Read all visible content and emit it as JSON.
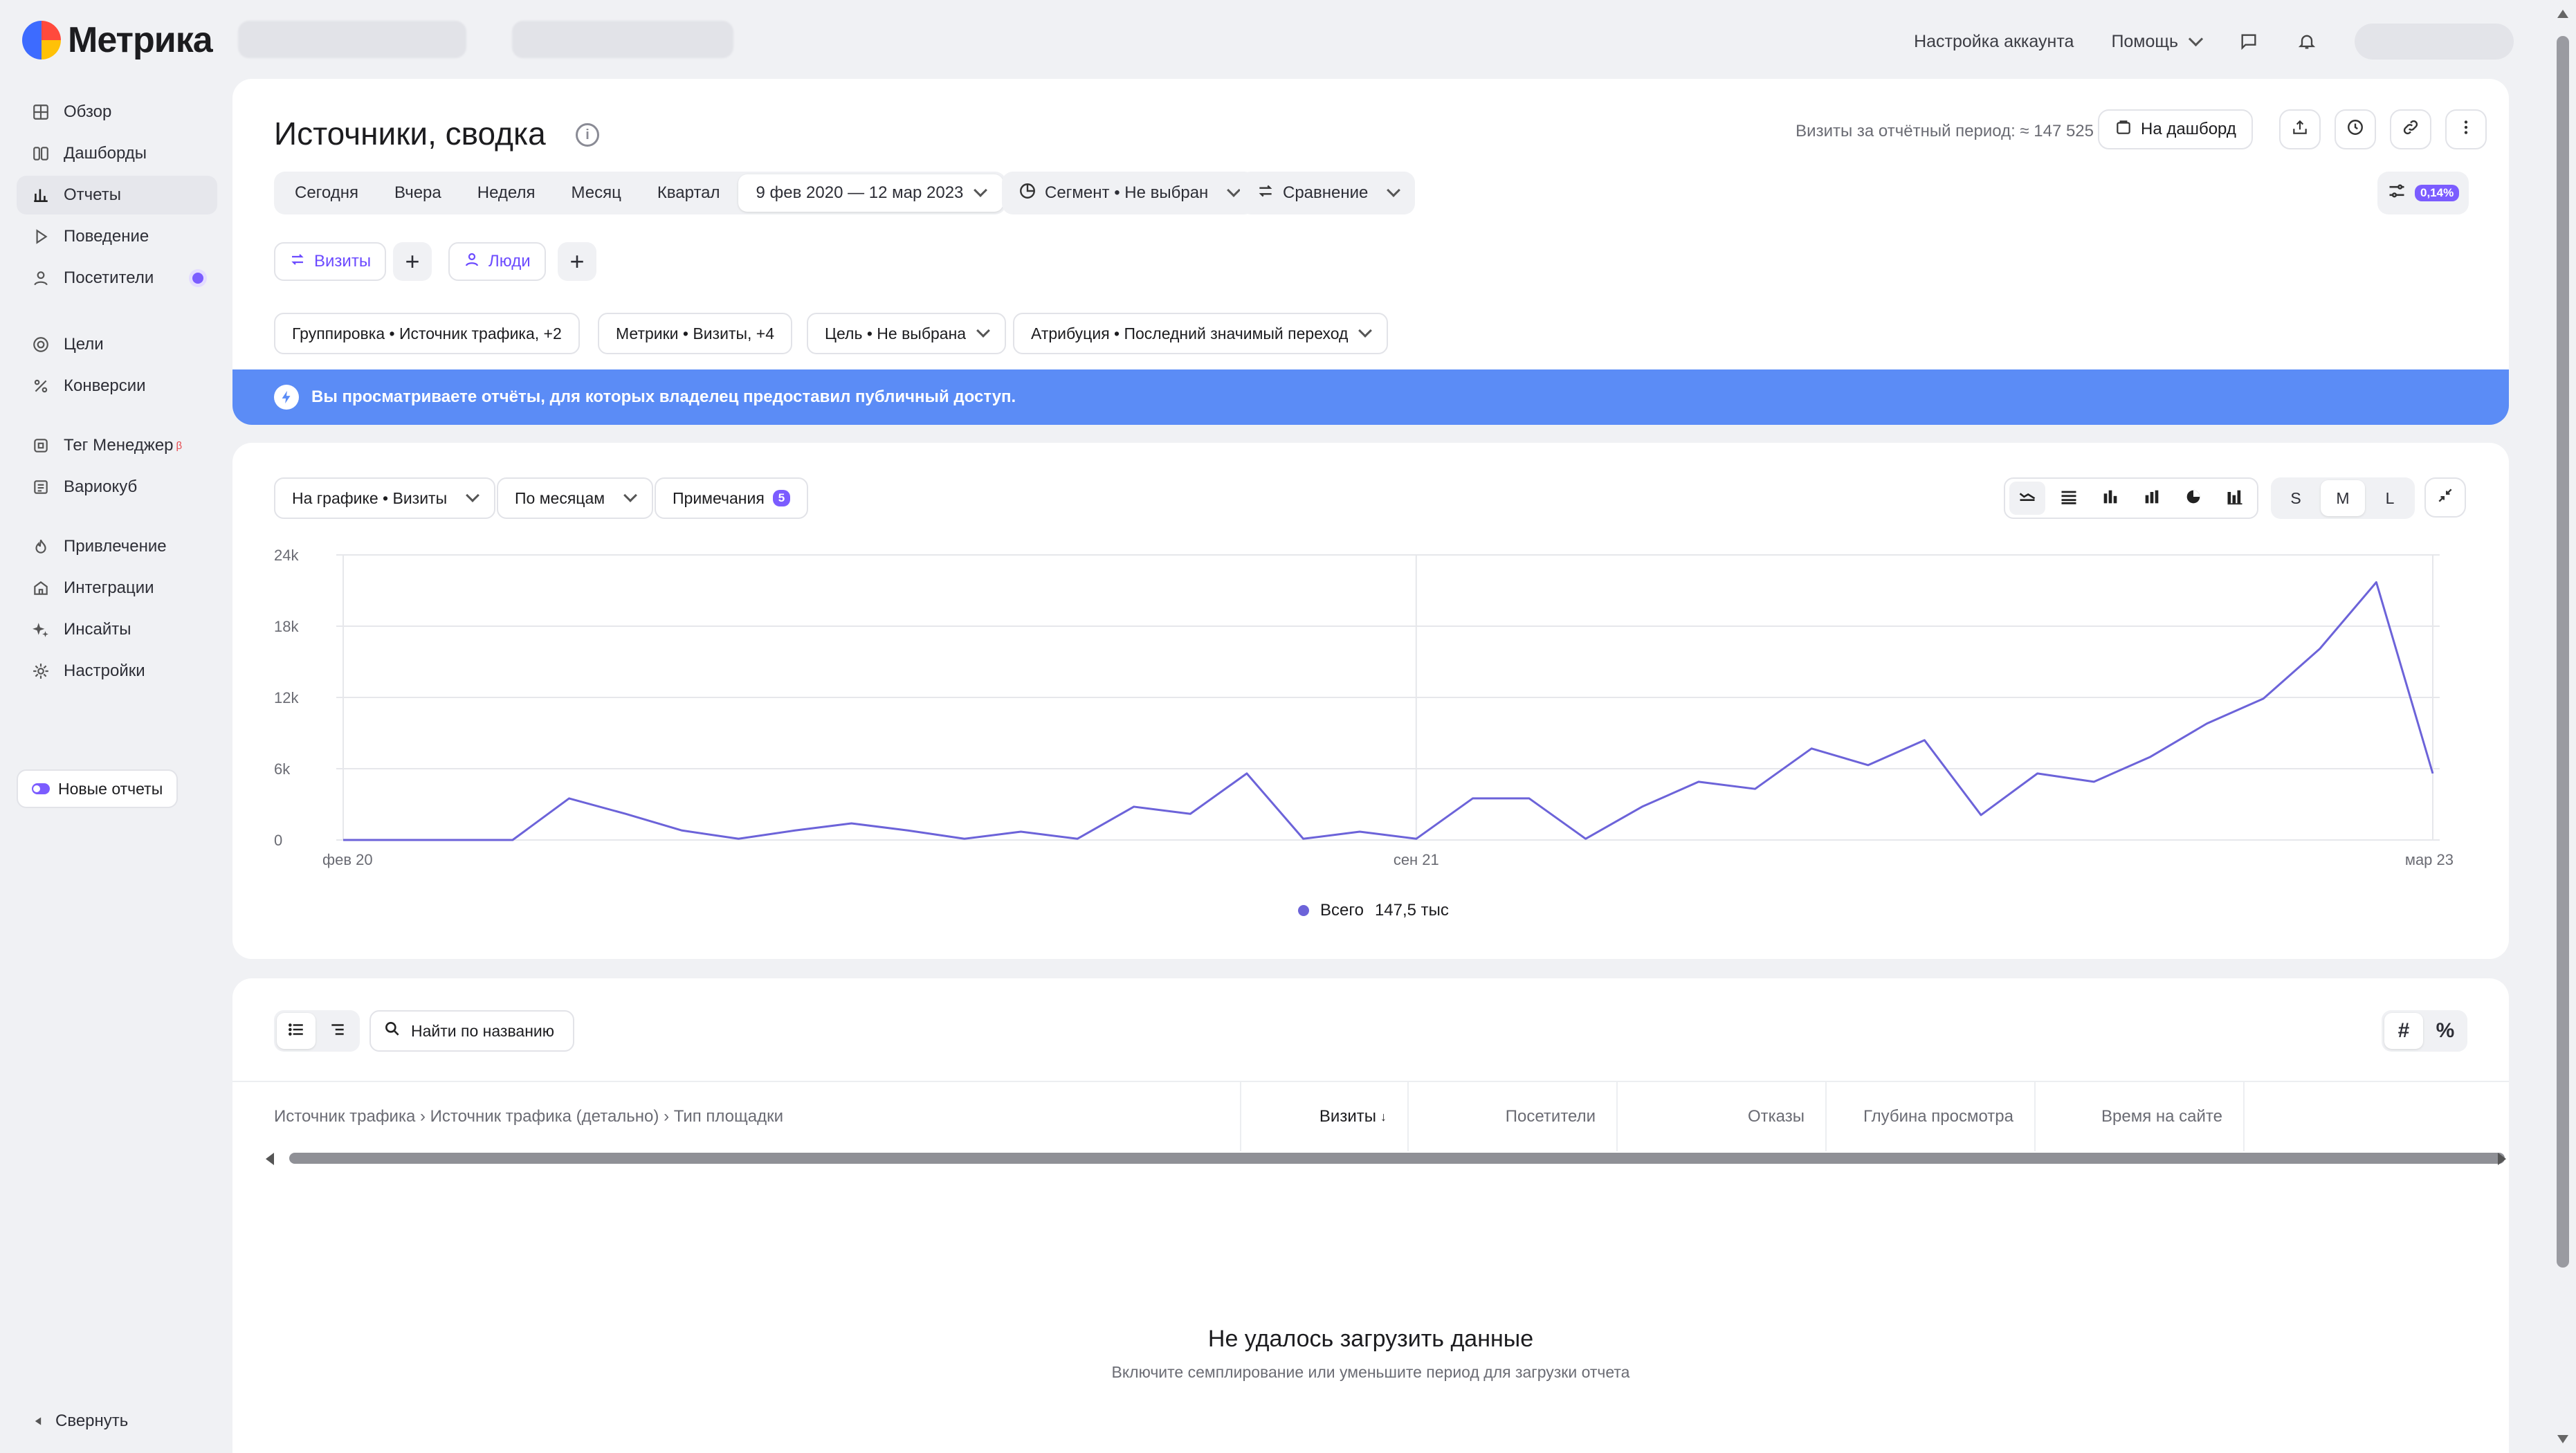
{
  "app": {
    "logo_text": "Метрика"
  },
  "topbar": {
    "account_settings": "Настройка аккаунта",
    "help": "Помощь"
  },
  "sidebar": {
    "items": [
      {
        "label": "Обзор",
        "icon": "grid-icon"
      },
      {
        "label": "Дашборды",
        "icon": "dashboards-icon"
      },
      {
        "label": "Отчеты",
        "icon": "bar-chart-icon",
        "active": true
      },
      {
        "label": "Поведение",
        "icon": "play-icon"
      },
      {
        "label": "Посетители",
        "icon": "user-icon"
      },
      {
        "label": "Цели",
        "icon": "target-icon"
      },
      {
        "label": "Конверсии",
        "icon": "percent-icon"
      },
      {
        "label": "Тег Менеджер",
        "icon": "tag-manager-icon",
        "sup": "β"
      },
      {
        "label": "Вариокуб",
        "icon": "variocube-icon"
      },
      {
        "label": "Привлечение",
        "icon": "flame-icon"
      },
      {
        "label": "Интеграции",
        "icon": "integrations-icon"
      },
      {
        "label": "Инсайты",
        "icon": "sparkle-icon"
      },
      {
        "label": "Настройки",
        "icon": "gear-icon"
      }
    ],
    "new_reports": "Новые отчеты",
    "collapse": "Свернуть"
  },
  "report": {
    "title": "Источники, сводка",
    "visits_total": "Визиты за отчётный период: ≈ 147 525",
    "to_dashboard": "На дашборд",
    "periods": [
      "Сегодня",
      "Вчера",
      "Неделя",
      "Месяц",
      "Квартал"
    ],
    "date_range": "9 фев 2020 — 12 мар 2023",
    "segment": "Сегмент • Не выбран",
    "comparison": "Сравнение",
    "sampling_badge": "0,14%",
    "segment_visits": "Визиты",
    "segment_people": "Люди",
    "grouping": "Группировка • Источник трафика, +2",
    "metrics": "Метрики • Визиты, +4",
    "goal": "Цель • Не выбрана",
    "attribution": "Атрибуция • Последний значимый переход"
  },
  "banner": {
    "text": "Вы просматриваете отчёты, для которых владелец предоставил публичный доступ."
  },
  "chart_controls": {
    "on_chart": "На графике • Визиты",
    "by_months": "По месяцам",
    "notes": "Примечания",
    "notes_count": "5",
    "sizes": [
      "S",
      "M",
      "L"
    ],
    "selected_size": "M"
  },
  "chart_data": {
    "type": "line",
    "series": [
      {
        "name": "Всего",
        "color": "#6c63d9",
        "values": [
          0,
          0,
          0,
          0,
          3500,
          2200,
          800,
          100,
          800,
          1400,
          800,
          100,
          700,
          100,
          2800,
          2200,
          5600,
          100,
          700,
          100,
          3500,
          3500,
          100,
          2800,
          4900,
          4300,
          7700,
          6300,
          8400,
          2100,
          5600,
          4900,
          7000,
          9800,
          11900,
          16100,
          21700,
          5600
        ]
      }
    ],
    "x_ticks": [
      "фев 20",
      "сен 21",
      "мар 23"
    ],
    "y_ticks": [
      "0",
      "6k",
      "12k",
      "18k",
      "24k"
    ],
    "ylim": [
      0,
      24000
    ],
    "legend_total": "147,5 тыс",
    "grid": true
  },
  "table": {
    "search_placeholder": "Найти по названию",
    "grouping_header": "Источник трафика › Источник трафика (детально) › Тип площадки",
    "columns": [
      "Визиты",
      "Посетители",
      "Отказы",
      "Глубина просмотра",
      "Время на сайте"
    ],
    "sort_indicator": "↓",
    "hash_label": "#",
    "percent_label": "%",
    "empty_title": "Не удалось загрузить данные",
    "empty_subtitle": "Включите семплирование или уменьшите период для загрузки отчета"
  }
}
